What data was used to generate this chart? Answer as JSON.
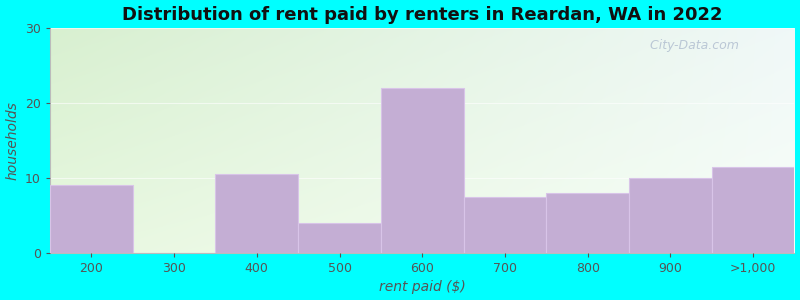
{
  "title": "Distribution of rent paid by renters in Reardan, WA in 2022",
  "categories": [
    "200",
    "300",
    "400",
    "500",
    "600",
    "700",
    "800",
    "900",
    ">1,000"
  ],
  "values": [
    9,
    0,
    10.5,
    4,
    22,
    7.5,
    8,
    10,
    11.5
  ],
  "bar_color": "#c4aed4",
  "bar_edge_color": "#d8c4e8",
  "xlabel": "rent paid ($)",
  "ylabel": "households",
  "ylim": [
    0,
    30
  ],
  "yticks": [
    0,
    10,
    20,
    30
  ],
  "bg_topleft": "#d8f0d0",
  "bg_topright": "#f0f8f8",
  "bg_bottomleft": "#e8f8e0",
  "bg_bottomright": "#f8fef8",
  "outer_color": "#00ffff",
  "title_fontsize": 13,
  "axis_label_fontsize": 10,
  "tick_fontsize": 9,
  "watermark": " City-Data.com"
}
